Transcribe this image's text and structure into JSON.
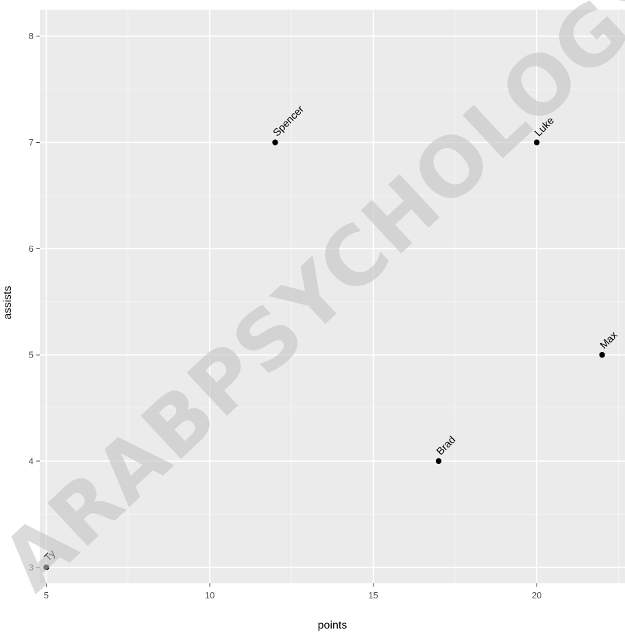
{
  "watermark": "ARABPSYCHOLOGY",
  "chart_data": {
    "type": "scatter",
    "title": "",
    "xlabel": "points",
    "ylabel": "assists",
    "xlim": [
      4.8,
      22.7
    ],
    "ylim": [
      2.85,
      8.25
    ],
    "x_ticks": [
      5,
      10,
      15,
      20
    ],
    "y_ticks": [
      3,
      4,
      5,
      6,
      7,
      8
    ],
    "grid": true,
    "points": [
      {
        "label": "Ty",
        "x": 5,
        "y": 3
      },
      {
        "label": "Spencer",
        "x": 12,
        "y": 7
      },
      {
        "label": "Brad",
        "x": 17,
        "y": 4
      },
      {
        "label": "Luke",
        "x": 20,
        "y": 7
      },
      {
        "label": "Max",
        "x": 22,
        "y": 5
      }
    ],
    "colors": {
      "panel": "#ebebeb",
      "grid": "#ffffff",
      "point": "#000000",
      "tick": "#4d4d4d"
    }
  }
}
